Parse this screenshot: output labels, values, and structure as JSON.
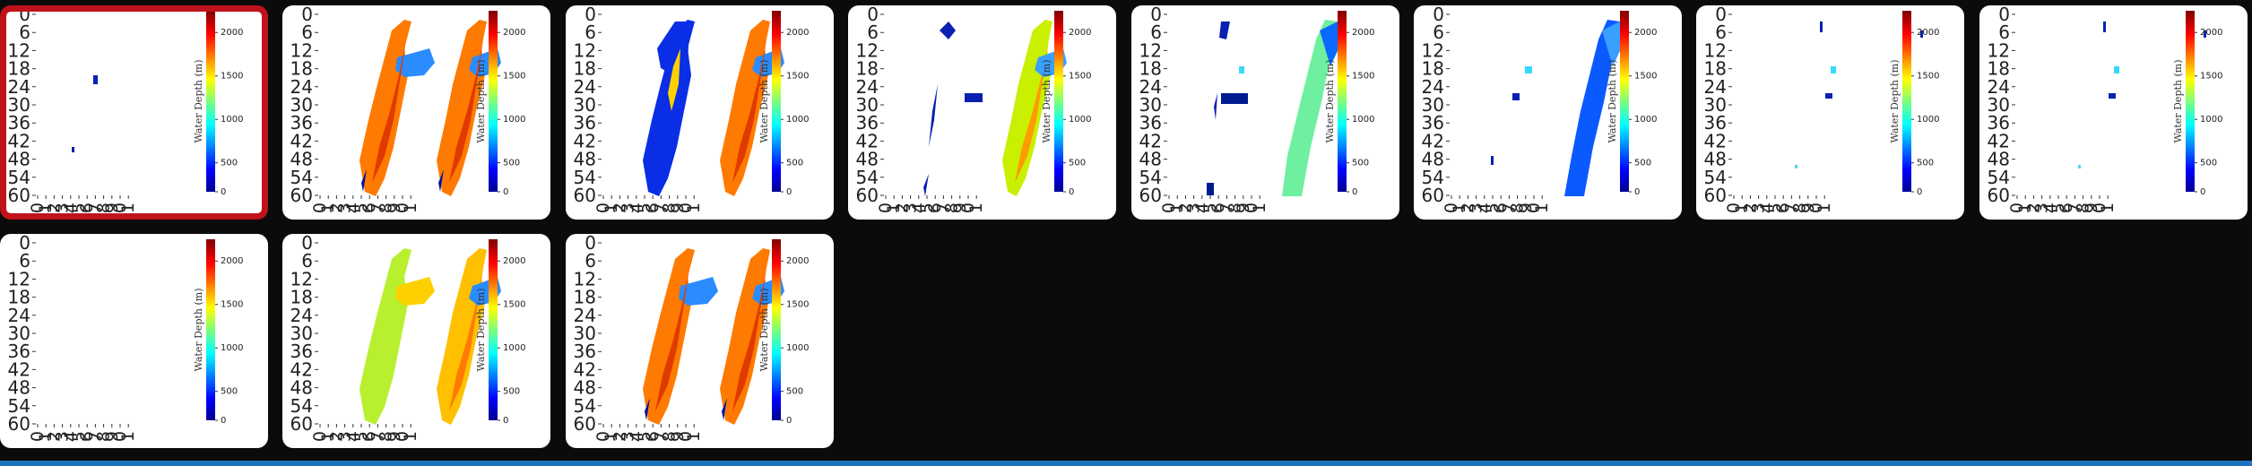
{
  "colors": {
    "page_background": "#0b0b0b",
    "card_background": "#ffffff",
    "selected_border": "#c0121b",
    "bottom_bar": "#1e73be"
  },
  "thumbnail_axes": {
    "y_ticks": [
      "0",
      "6",
      "12",
      "18",
      "24",
      "30",
      "36",
      "42",
      "48",
      "54",
      "60"
    ],
    "x_ticks": [
      "0",
      "1",
      "2",
      "3",
      "4",
      "5",
      "6",
      "7",
      "8",
      "9",
      "0",
      "1"
    ],
    "colorbar_label": "Water Depth (m)",
    "colorbar_ticks": [
      "2000",
      "1500",
      "1000",
      "500",
      "0"
    ]
  },
  "thumbnails": [
    {
      "id": "frame-1",
      "selected": true,
      "pattern": "empty-dots"
    },
    {
      "id": "frame-2",
      "selected": false,
      "pattern": "deep-pair"
    },
    {
      "id": "frame-3",
      "selected": false,
      "pattern": "blue-orange"
    },
    {
      "id": "frame-4",
      "selected": false,
      "pattern": "sparse-green"
    },
    {
      "id": "frame-5",
      "selected": false,
      "pattern": "sparse-cyan"
    },
    {
      "id": "frame-6",
      "selected": false,
      "pattern": "sparse-blue"
    },
    {
      "id": "frame-7",
      "selected": false,
      "pattern": "dots"
    },
    {
      "id": "frame-8",
      "selected": false,
      "pattern": "dots"
    },
    {
      "id": "frame-9",
      "selected": false,
      "pattern": "empty"
    },
    {
      "id": "frame-10",
      "selected": false,
      "pattern": "green-pair"
    },
    {
      "id": "frame-11",
      "selected": false,
      "pattern": "deep-pair"
    }
  ]
}
